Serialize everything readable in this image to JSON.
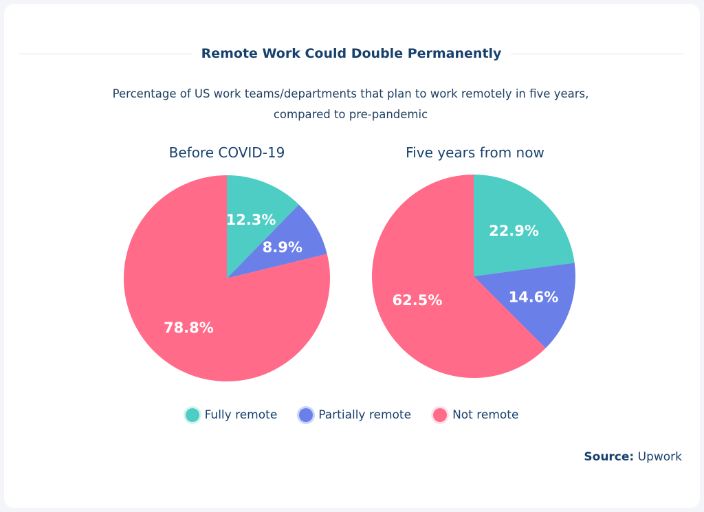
{
  "chart_data": [
    {
      "type": "pie",
      "title": "Before COVID-19",
      "categories": [
        "Fully remote",
        "Partially remote",
        "Not remote"
      ],
      "values": [
        12.3,
        8.9,
        78.8
      ],
      "labels": [
        "12.3%",
        "8.9%",
        "78.8%"
      ]
    },
    {
      "type": "pie",
      "title": "Five years from now",
      "categories": [
        "Fully remote",
        "Partially remote",
        "Not remote"
      ],
      "values": [
        22.9,
        14.6,
        62.5
      ],
      "labels": [
        "22.9%",
        "14.6%",
        "62.5%"
      ]
    }
  ],
  "header": {
    "title": "Remote Work Could Double Permanently",
    "subtitle": "Percentage of US work teams/departments that plan to work remotely in five years, compared to pre-pandemic"
  },
  "legend": [
    {
      "label": "Fully remote",
      "color": "#4ecdc4",
      "halo": "#d3f3f0"
    },
    {
      "label": "Partially remote",
      "color": "#6b7fe9",
      "halo": "#c6d5f8"
    },
    {
      "label": "Not remote",
      "color": "#ff6b88",
      "halo": "#ffe0e6"
    }
  ],
  "source": {
    "label": "Source:",
    "value": "Upwork"
  }
}
